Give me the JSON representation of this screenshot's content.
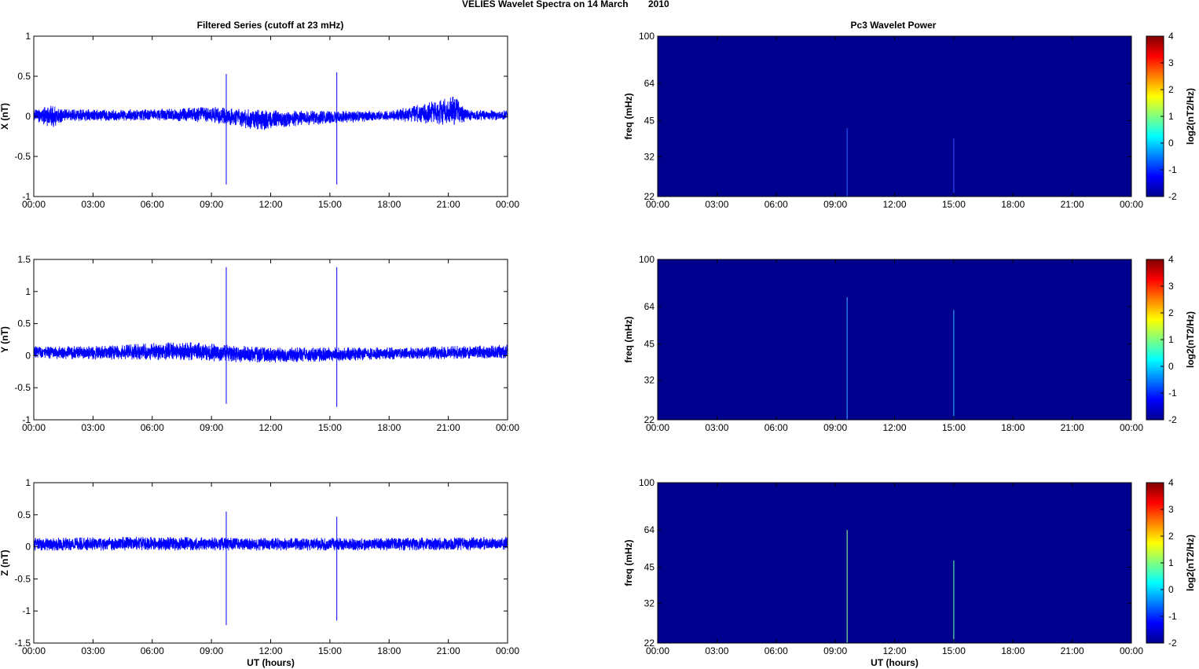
{
  "figure": {
    "title_left": "VELIES Wavelet Spectra on 14 March",
    "title_year": "2010",
    "left_column_title": "Filtered Series (cutoff at 23 mHz)",
    "right_column_title": "Pc3 Wavelet Power"
  },
  "colors": {
    "trace": "#0000ff",
    "background_power": "#00008f"
  },
  "chart_data": [
    {
      "type": "line",
      "ylabel": "X (nT)",
      "xlabel": "",
      "ylim": [
        -1,
        1
      ],
      "yticks": [
        "1",
        "0.5",
        "0",
        "-0.5",
        "-1"
      ],
      "xticks": [
        "00:00",
        "03:00",
        "06:00",
        "09:00",
        "12:00",
        "15:00",
        "18:00",
        "21:00",
        "00:00"
      ],
      "x_unit": "UT hours",
      "noise_band": [
        {
          "x": 0,
          "lo": -0.05,
          "hi": 0.08
        },
        {
          "x": 0.9,
          "lo": -0.15,
          "hi": 0.14
        },
        {
          "x": 1.5,
          "lo": -0.06,
          "hi": 0.09
        },
        {
          "x": 6,
          "lo": -0.05,
          "hi": 0.09
        },
        {
          "x": 9,
          "lo": -0.08,
          "hi": 0.12
        },
        {
          "x": 11.5,
          "lo": -0.18,
          "hi": 0.08
        },
        {
          "x": 13.5,
          "lo": -0.12,
          "hi": 0.07
        },
        {
          "x": 18,
          "lo": -0.05,
          "hi": 0.07
        },
        {
          "x": 21.3,
          "lo": -0.12,
          "hi": 0.25
        },
        {
          "x": 22,
          "lo": -0.05,
          "hi": 0.08
        },
        {
          "x": 24,
          "lo": -0.05,
          "hi": 0.08
        }
      ],
      "spikes": [
        {
          "x": 9.75,
          "lo": -0.85,
          "hi": 0.53
        },
        {
          "x": 15.35,
          "lo": -0.85,
          "hi": 0.55
        }
      ]
    },
    {
      "type": "heatmap",
      "ylabel": "freq (mHz)",
      "xlabel": "",
      "yticks": [
        "100",
        "64",
        "45",
        "32",
        "22"
      ],
      "ylim": [
        22,
        100
      ],
      "xticks": [
        "00:00",
        "03:00",
        "06:00",
        "09:00",
        "12:00",
        "15:00",
        "18:00",
        "21:00",
        "00:00"
      ],
      "colorbar": {
        "label": "log2(nT2/Hz)",
        "ticks": [
          "4",
          "3",
          "2",
          "1",
          "0",
          "-1",
          "-2"
        ],
        "range": [
          -2,
          4
        ]
      },
      "streaks": [
        {
          "x": 9.6,
          "f_top": 42,
          "color": "#1f5fff"
        },
        {
          "x": 15.0,
          "f_top": 38,
          "color": "#2a4fff"
        }
      ]
    },
    {
      "type": "line",
      "ylabel": "Y (nT)",
      "xlabel": "",
      "ylim": [
        -1,
        1.5
      ],
      "yticks": [
        "1.5",
        "1",
        "0.5",
        "0",
        "-0.5",
        "-1"
      ],
      "xticks": [
        "00:00",
        "03:00",
        "06:00",
        "09:00",
        "12:00",
        "15:00",
        "18:00",
        "21:00",
        "00:00"
      ],
      "x_unit": "UT hours",
      "noise_band": [
        {
          "x": 0,
          "lo": -0.05,
          "hi": 0.15
        },
        {
          "x": 3,
          "lo": -0.06,
          "hi": 0.15
        },
        {
          "x": 7.4,
          "lo": -0.07,
          "hi": 0.22
        },
        {
          "x": 11.8,
          "lo": -0.12,
          "hi": 0.13
        },
        {
          "x": 18,
          "lo": -0.06,
          "hi": 0.13
        },
        {
          "x": 24,
          "lo": -0.05,
          "hi": 0.17
        }
      ],
      "spikes": [
        {
          "x": 9.75,
          "lo": -0.75,
          "hi": 1.38
        },
        {
          "x": 15.35,
          "lo": -0.8,
          "hi": 1.38
        }
      ]
    },
    {
      "type": "heatmap",
      "ylabel": "freq (mHz)",
      "xlabel": "",
      "yticks": [
        "100",
        "64",
        "45",
        "32",
        "22"
      ],
      "ylim": [
        22,
        100
      ],
      "xticks": [
        "00:00",
        "03:00",
        "06:00",
        "09:00",
        "12:00",
        "15:00",
        "18:00",
        "21:00",
        "00:00"
      ],
      "colorbar": {
        "label": "log2(nT2/Hz)",
        "ticks": [
          "4",
          "3",
          "2",
          "1",
          "0",
          "-1",
          "-2"
        ],
        "range": [
          -2,
          4
        ]
      },
      "streaks": [
        {
          "x": 9.6,
          "f_top": 70,
          "color": "#3aa0ff"
        },
        {
          "x": 15.0,
          "f_top": 62,
          "color": "#30b0ff"
        }
      ]
    },
    {
      "type": "line",
      "ylabel": "Z (nT)",
      "xlabel": "UT (hours)",
      "ylim": [
        -1.5,
        1
      ],
      "yticks": [
        "1",
        "0.5",
        "0",
        "-0.5",
        "-1",
        "-1.5"
      ],
      "xticks": [
        "00:00",
        "03:00",
        "06:00",
        "09:00",
        "12:00",
        "15:00",
        "18:00",
        "21:00",
        "00:00"
      ],
      "x_unit": "UT hours",
      "noise_band": [
        {
          "x": 0,
          "lo": -0.06,
          "hi": 0.14
        },
        {
          "x": 6,
          "lo": -0.06,
          "hi": 0.16
        },
        {
          "x": 12,
          "lo": -0.06,
          "hi": 0.14
        },
        {
          "x": 18,
          "lo": -0.06,
          "hi": 0.14
        },
        {
          "x": 24,
          "lo": -0.05,
          "hi": 0.16
        }
      ],
      "spikes": [
        {
          "x": 9.75,
          "lo": -1.22,
          "hi": 0.55
        },
        {
          "x": 15.35,
          "lo": -1.15,
          "hi": 0.47
        }
      ]
    },
    {
      "type": "heatmap",
      "ylabel": "freq (mHz)",
      "xlabel": "UT (hours)",
      "yticks": [
        "100",
        "64",
        "45",
        "32",
        "22"
      ],
      "ylim": [
        22,
        100
      ],
      "xticks": [
        "00:00",
        "03:00",
        "06:00",
        "09:00",
        "12:00",
        "15:00",
        "18:00",
        "21:00",
        "00:00"
      ],
      "colorbar": {
        "label": "log2(nT2/Hz)",
        "ticks": [
          "4",
          "3",
          "2",
          "1",
          "0",
          "-1",
          "-2"
        ],
        "range": [
          -2,
          4
        ]
      },
      "streaks": [
        {
          "x": 9.6,
          "f_top": 64,
          "color": "#7fff7f"
        },
        {
          "x": 15.0,
          "f_top": 48,
          "color": "#5fff9f"
        }
      ]
    }
  ]
}
